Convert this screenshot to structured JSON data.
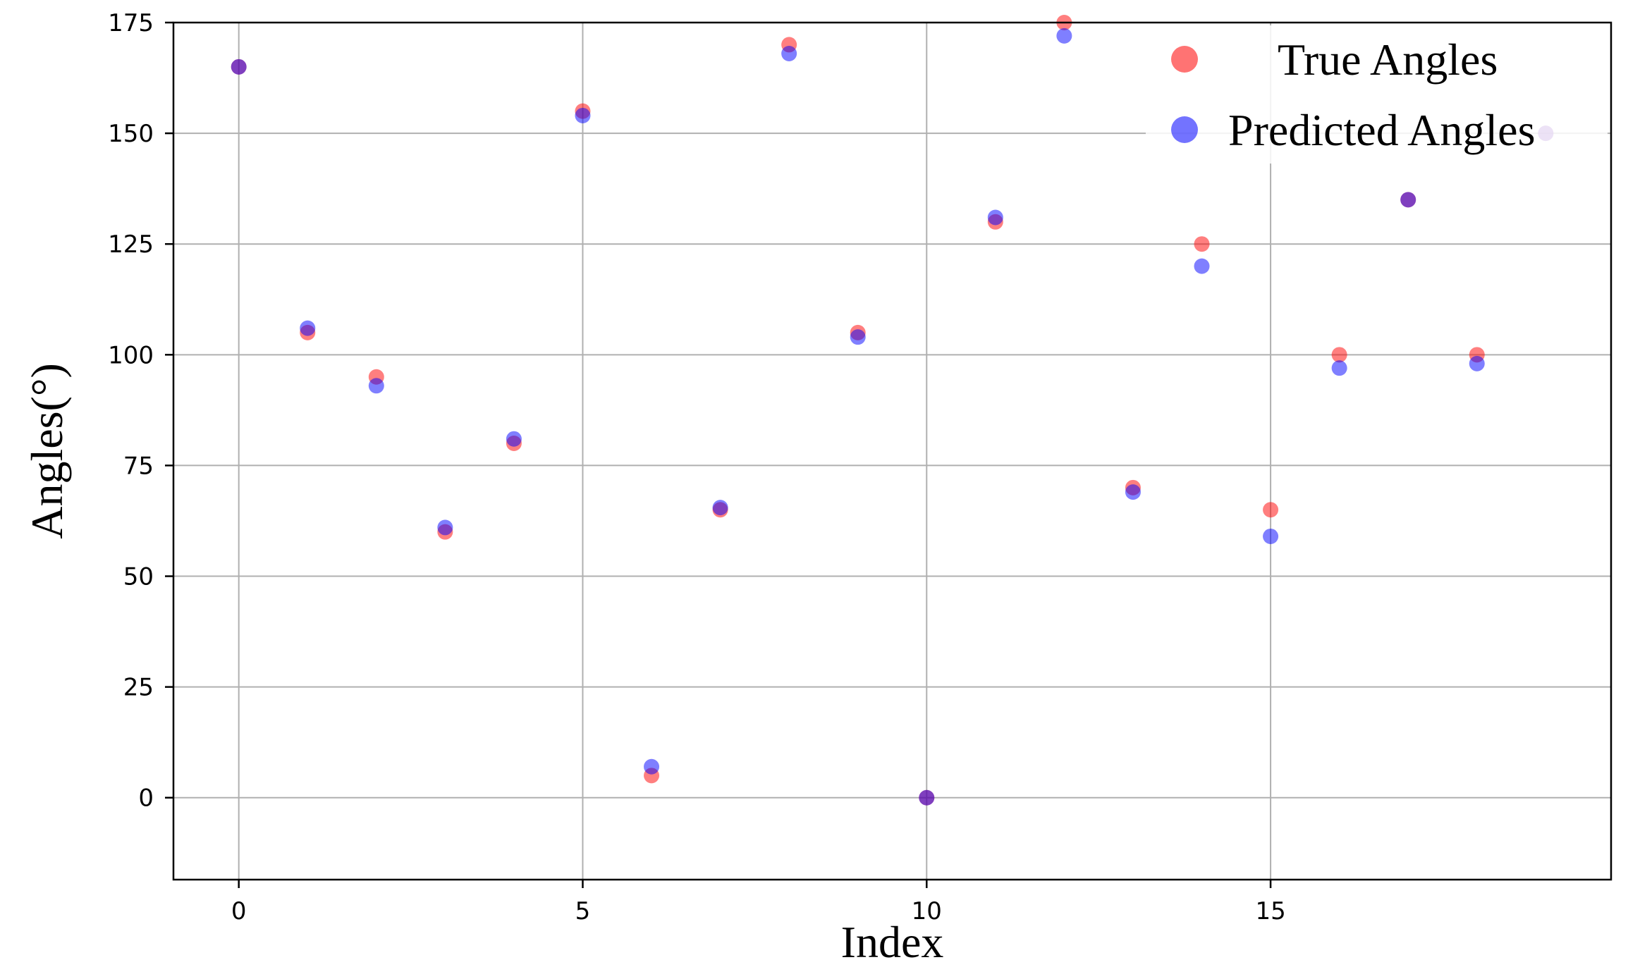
{
  "chart_data": {
    "type": "scatter",
    "title": "",
    "xlabel": "Index",
    "ylabel": "Angles(°)",
    "xlim": [
      -0.95,
      19.95
    ],
    "ylim": [
      -18.5,
      175
    ],
    "x_ticks": [
      0,
      5,
      10,
      15
    ],
    "y_ticks": [
      0,
      25,
      50,
      75,
      100,
      125,
      150,
      175
    ],
    "grid": true,
    "legend_position": "top-right",
    "x": [
      0,
      1,
      2,
      3,
      4,
      5,
      6,
      7,
      8,
      9,
      10,
      11,
      12,
      13,
      14,
      15,
      16,
      17,
      18,
      19
    ],
    "series": [
      {
        "name": "True Angles",
        "color": "#ff0000",
        "values": [
          165,
          105,
          95,
          60,
          80,
          155,
          5,
          65,
          170,
          105,
          0,
          130,
          175,
          70,
          125,
          65,
          100,
          135,
          100,
          150
        ]
      },
      {
        "name": "Predicted Angles",
        "color": "#0000ff",
        "values": [
          165,
          106,
          93,
          61,
          81,
          154,
          7,
          65.5,
          168,
          104,
          0,
          131,
          172,
          69,
          120,
          59,
          97,
          135,
          98,
          150
        ]
      }
    ]
  }
}
